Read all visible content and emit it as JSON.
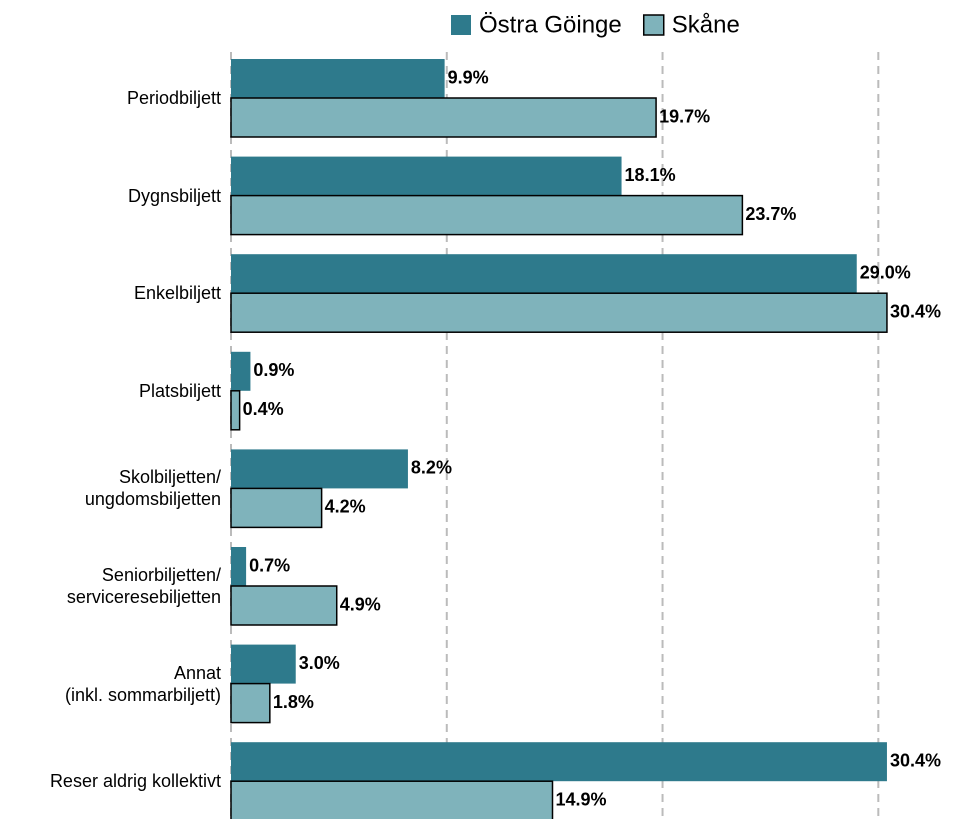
{
  "chart_data": {
    "type": "bar",
    "orientation": "horizontal",
    "categories": [
      "Periodbiljett",
      "Dygnsbiljett",
      "Enkelbiljett",
      "Platsbiljett",
      "Skolbiljetten/\nungdomsbiljetten",
      "Seniorbiljetten/\nserviceresebiljetten",
      "Annat\n(inkl. sommarbiljett)",
      "Reser aldrig kollektivt"
    ],
    "series": [
      {
        "name": "Östra Göinge",
        "color": "#2e7a8c",
        "values": [
          9.9,
          18.1,
          29.0,
          0.9,
          8.2,
          0.7,
          3.0,
          30.4
        ],
        "value_labels": [
          "9.9%",
          "18.1%",
          "29.0%",
          "0.9%",
          "8.2%",
          "0.7%",
          "3.0%",
          "30.4%"
        ]
      },
      {
        "name": "Skåne",
        "color": "#7fb3bb",
        "values": [
          19.7,
          23.7,
          30.4,
          0.4,
          4.2,
          4.9,
          1.8,
          14.9
        ],
        "value_labels": [
          "19.7%",
          "23.7%",
          "30.4%",
          "0.4%",
          "4.2%",
          "4.9%",
          "1.8%",
          "14.9%"
        ]
      }
    ],
    "xlim": [
      0,
      33.6
    ],
    "xticks": [
      0,
      10,
      20,
      30
    ],
    "grid": true,
    "legend": "top"
  }
}
